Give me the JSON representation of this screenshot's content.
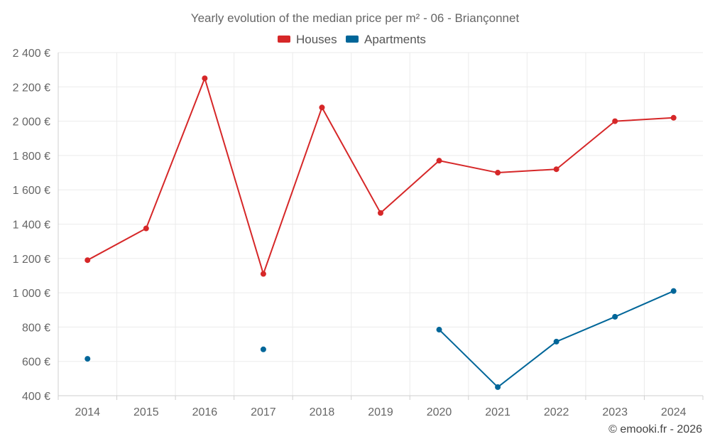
{
  "chart_data": {
    "type": "line",
    "title": "Yearly evolution of the median price per m² - 06 - Briançonnet",
    "xlabel": "",
    "ylabel": "",
    "categories": [
      "2014",
      "2015",
      "2016",
      "2017",
      "2018",
      "2019",
      "2020",
      "2021",
      "2022",
      "2023",
      "2024"
    ],
    "ylim": [
      400,
      2400
    ],
    "yticks": [
      400,
      600,
      800,
      1000,
      1200,
      1400,
      1600,
      1800,
      2000,
      2200,
      2400
    ],
    "ytick_labels": [
      "400 €",
      "600 €",
      "800 €",
      "1 000 €",
      "1 200 €",
      "1 400 €",
      "1 600 €",
      "1 800 €",
      "2 000 €",
      "2 200 €",
      "2 400 €"
    ],
    "grid": true,
    "legend_position": "top-center",
    "series": [
      {
        "name": "Houses",
        "color": "#d62728",
        "values": [
          1190,
          1375,
          2250,
          1110,
          2080,
          1465,
          1770,
          1700,
          1720,
          2000,
          2020
        ]
      },
      {
        "name": "Apartments",
        "color": "#006699",
        "values": [
          615,
          null,
          null,
          670,
          null,
          null,
          785,
          450,
          715,
          860,
          1010
        ]
      }
    ]
  },
  "credit": "© emooki.fr - 2026"
}
